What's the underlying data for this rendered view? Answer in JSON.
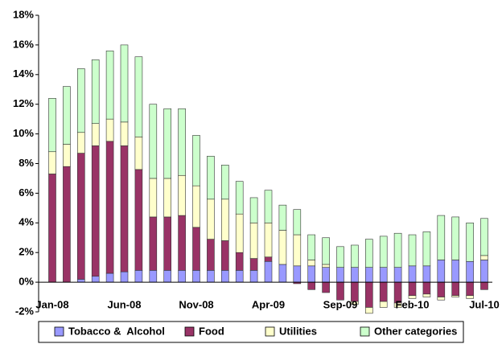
{
  "chart_data": {
    "type": "stacked_bar",
    "categories": [
      "Jan-08",
      null,
      null,
      null,
      null,
      "Jun-08",
      null,
      null,
      null,
      null,
      "Nov-08",
      null,
      null,
      null,
      null,
      "Apr-09",
      null,
      null,
      null,
      null,
      "Sep-09",
      null,
      null,
      null,
      null,
      "Feb-10",
      null,
      null,
      null,
      null,
      "Jul-10"
    ],
    "series": [
      {
        "name": "Tobacco &  Alcohol",
        "color": "#9999ff",
        "values": [
          0,
          0,
          0.2,
          0.4,
          0.6,
          0.7,
          0.8,
          0.8,
          0.8,
          0.8,
          0.8,
          0.8,
          0.8,
          0.8,
          0.8,
          1.4,
          1.2,
          1.1,
          1.1,
          1.0,
          1.0,
          1.0,
          1.0,
          1.0,
          1.0,
          1.1,
          1.1,
          1.5,
          1.5,
          1.4,
          1.5
        ]
      },
      {
        "name": "Food",
        "color": "#993366",
        "values": [
          7.3,
          7.8,
          8.5,
          8.8,
          8.9,
          8.5,
          6.8,
          3.6,
          3.6,
          3.7,
          2.9,
          2.1,
          2.0,
          1.2,
          0.8,
          0.3,
          0,
          -0.1,
          -0.5,
          -0.7,
          -1.2,
          -1.3,
          -1.7,
          -1.3,
          -1.4,
          -0.9,
          -0.8,
          -1.0,
          -0.9,
          -0.9,
          -0.5
        ]
      },
      {
        "name": "Utilities",
        "color": "#ffffcc",
        "values": [
          1.5,
          1.5,
          1.4,
          1.5,
          1.5,
          1.6,
          2.2,
          2.6,
          2.6,
          2.7,
          2.8,
          2.7,
          2.8,
          2.6,
          2.4,
          2.3,
          2.3,
          2.1,
          0.4,
          0.2,
          0,
          -0.2,
          -0.4,
          -0.4,
          -0.3,
          -0.2,
          -0.2,
          -0.2,
          -0.1,
          -0.2,
          0.3
        ]
      },
      {
        "name": "Other categories",
        "color": "#ccffcc",
        "values": [
          3.6,
          3.9,
          4.3,
          4.3,
          4.6,
          5.2,
          5.4,
          5.0,
          4.7,
          4.5,
          3.4,
          2.9,
          2.3,
          2.2,
          1.7,
          2.2,
          1.7,
          1.7,
          1.7,
          1.8,
          1.4,
          1.5,
          1.9,
          2.1,
          2.3,
          2.1,
          2.3,
          3.0,
          2.9,
          2.6,
          2.5
        ]
      }
    ],
    "ylim": [
      -2,
      18
    ],
    "yticks": [
      {
        "value": -2,
        "label": "-2%"
      },
      {
        "value": 0,
        "label": "0%"
      },
      {
        "value": 2,
        "label": "2%"
      },
      {
        "value": 4,
        "label": "4%"
      },
      {
        "value": 6,
        "label": "6%"
      },
      {
        "value": 8,
        "label": "8%"
      },
      {
        "value": 10,
        "label": "10%"
      },
      {
        "value": 12,
        "label": "12%"
      },
      {
        "value": 14,
        "label": "14%"
      },
      {
        "value": 16,
        "label": "16%"
      },
      {
        "value": 18,
        "label": "18%"
      }
    ],
    "legend": "bottom"
  }
}
